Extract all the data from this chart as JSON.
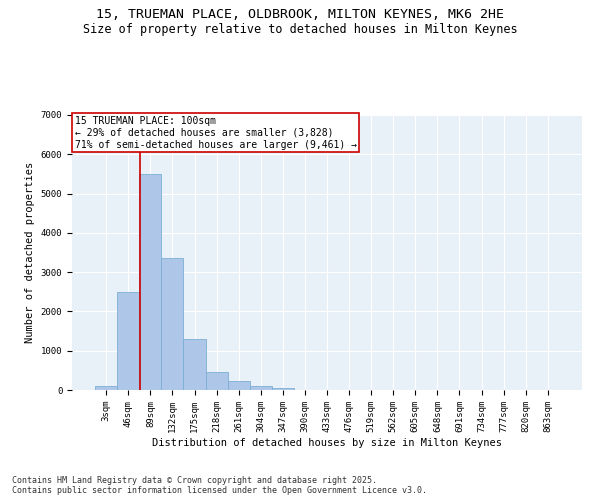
{
  "title_line1": "15, TRUEMAN PLACE, OLDBROOK, MILTON KEYNES, MK6 2HE",
  "title_line2": "Size of property relative to detached houses in Milton Keynes",
  "xlabel": "Distribution of detached houses by size in Milton Keynes",
  "ylabel": "Number of detached properties",
  "bin_labels": [
    "3sqm",
    "46sqm",
    "89sqm",
    "132sqm",
    "175sqm",
    "218sqm",
    "261sqm",
    "304sqm",
    "347sqm",
    "390sqm",
    "433sqm",
    "476sqm",
    "519sqm",
    "562sqm",
    "605sqm",
    "648sqm",
    "691sqm",
    "734sqm",
    "777sqm",
    "820sqm",
    "863sqm"
  ],
  "bar_values": [
    100,
    2500,
    5500,
    3350,
    1300,
    460,
    220,
    90,
    50,
    0,
    0,
    0,
    0,
    0,
    0,
    0,
    0,
    0,
    0,
    0,
    0
  ],
  "bar_color": "#aec6e8",
  "bar_edgecolor": "#7aafd4",
  "bar_linewidth": 0.6,
  "vline_color": "#cc0000",
  "vline_linewidth": 1.2,
  "vline_pos": 1.55,
  "annotation_text": "15 TRUEMAN PLACE: 100sqm\n← 29% of detached houses are smaller (3,828)\n71% of semi-detached houses are larger (9,461) →",
  "annotation_box_color": "#cc0000",
  "annotation_facecolor": "white",
  "ylim": [
    0,
    7000
  ],
  "yticks": [
    0,
    1000,
    2000,
    3000,
    4000,
    5000,
    6000,
    7000
  ],
  "background_color": "#e8f0f8",
  "grid_color": "white",
  "footer_text": "Contains HM Land Registry data © Crown copyright and database right 2025.\nContains public sector information licensed under the Open Government Licence v3.0.",
  "title_fontsize": 9.5,
  "subtitle_fontsize": 8.5,
  "annotation_fontsize": 7,
  "axis_label_fontsize": 7.5,
  "tick_fontsize": 6.5,
  "footer_fontsize": 6
}
